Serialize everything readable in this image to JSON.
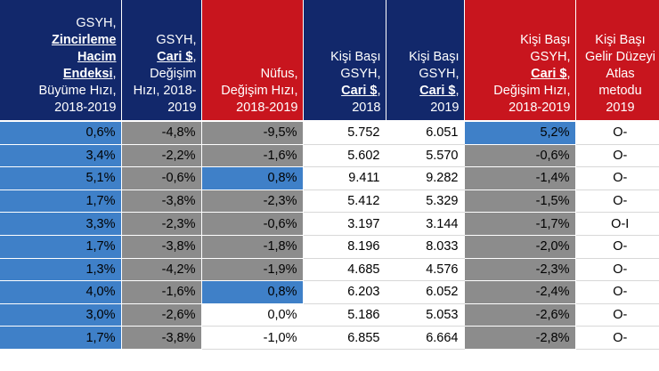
{
  "headers": [
    {
      "lines": [
        "GSYH,",
        {
          "u": "Zincirleme"
        },
        {
          "u": "Hacim"
        },
        {
          "u": "Endeksi",
          "after": ","
        },
        "Büyüme Hızı,",
        "2018-2019"
      ],
      "color": "blue"
    },
    {
      "lines": [
        "GSYH,",
        {
          "u": "Cari $",
          "after": ","
        },
        "Değişim",
        "Hızı, 2018-",
        "2019"
      ],
      "color": "blue"
    },
    {
      "lines": [
        "Nüfus,",
        "Değişim Hızı,",
        "2018-2019"
      ],
      "color": "red"
    },
    {
      "lines": [
        "Kişi Başı",
        "GSYH,",
        {
          "u": "Cari $",
          "after": ","
        },
        "2018"
      ],
      "color": "blue"
    },
    {
      "lines": [
        "Kişi Başı",
        "GSYH,",
        {
          "u": "Cari $",
          "after": ","
        },
        "2019"
      ],
      "color": "blue"
    },
    {
      "lines": [
        "Kişi Başı",
        "GSYH, ",
        {
          "u": "Cari $",
          "after": ","
        },
        "Değişim Hızı,",
        "2018-2019"
      ],
      "color": "red"
    },
    {
      "lines": [
        "Kişi Başı",
        "Gelir Düzeyi",
        "Atlas",
        "metodu",
        "2019"
      ],
      "color": "red"
    }
  ],
  "rows": [
    {
      "cells": [
        "0,6%",
        "-4,8%",
        "-9,5%",
        "5.752",
        "6.051",
        "5,2%",
        "O-"
      ],
      "styles": [
        "blue",
        "grey",
        "grey",
        "white",
        "white",
        "blue",
        "white"
      ]
    },
    {
      "cells": [
        "3,4%",
        "-2,2%",
        "-1,6%",
        "5.602",
        "5.570",
        "-0,6%",
        "O-"
      ],
      "styles": [
        "blue",
        "grey",
        "grey",
        "white",
        "white",
        "grey",
        "white"
      ]
    },
    {
      "cells": [
        "5,1%",
        "-0,6%",
        "0,8%",
        "9.411",
        "9.282",
        "-1,4%",
        "O-"
      ],
      "styles": [
        "blue",
        "grey",
        "blue",
        "white",
        "white",
        "grey",
        "white"
      ]
    },
    {
      "cells": [
        "1,7%",
        "-3,8%",
        "-2,3%",
        "5.412",
        "5.329",
        "-1,5%",
        "O-"
      ],
      "styles": [
        "blue",
        "grey",
        "grey",
        "white",
        "white",
        "grey",
        "white"
      ]
    },
    {
      "cells": [
        "3,3%",
        "-2,3%",
        "-0,6%",
        "3.197",
        "3.144",
        "-1,7%",
        "O-I"
      ],
      "styles": [
        "blue",
        "grey",
        "grey",
        "white",
        "white",
        "grey",
        "white"
      ]
    },
    {
      "cells": [
        "1,7%",
        "-3,8%",
        "-1,8%",
        "8.196",
        "8.033",
        "-2,0%",
        "O-"
      ],
      "styles": [
        "blue",
        "grey",
        "grey",
        "white",
        "white",
        "grey",
        "white"
      ]
    },
    {
      "cells": [
        "1,3%",
        "-4,2%",
        "-1,9%",
        "4.685",
        "4.576",
        "-2,3%",
        "O-"
      ],
      "styles": [
        "blue",
        "grey",
        "grey",
        "white",
        "white",
        "grey",
        "white"
      ]
    },
    {
      "cells": [
        "4,0%",
        "-1,6%",
        "0,8%",
        "6.203",
        "6.052",
        "-2,4%",
        "O-"
      ],
      "styles": [
        "blue",
        "grey",
        "blue",
        "white",
        "white",
        "grey",
        "white"
      ]
    },
    {
      "cells": [
        "3,0%",
        "-2,6%",
        "0,0%",
        "5.186",
        "5.053",
        "-2,6%",
        "O-"
      ],
      "styles": [
        "blue",
        "grey",
        "white",
        "white",
        "white",
        "grey",
        "white"
      ]
    },
    {
      "cells": [
        "1,7%",
        "-3,8%",
        "-1,0%",
        "6.855",
        "6.664",
        "-2,8%",
        "O-"
      ],
      "styles": [
        "blue",
        "grey",
        "white",
        "white",
        "white",
        "grey",
        "white"
      ]
    }
  ],
  "colors": {
    "header_blue": "#12286b",
    "header_red": "#c8151e",
    "cell_blue": "#3f80c8",
    "cell_grey": "#8c8c8c",
    "cell_white": "#ffffff"
  }
}
